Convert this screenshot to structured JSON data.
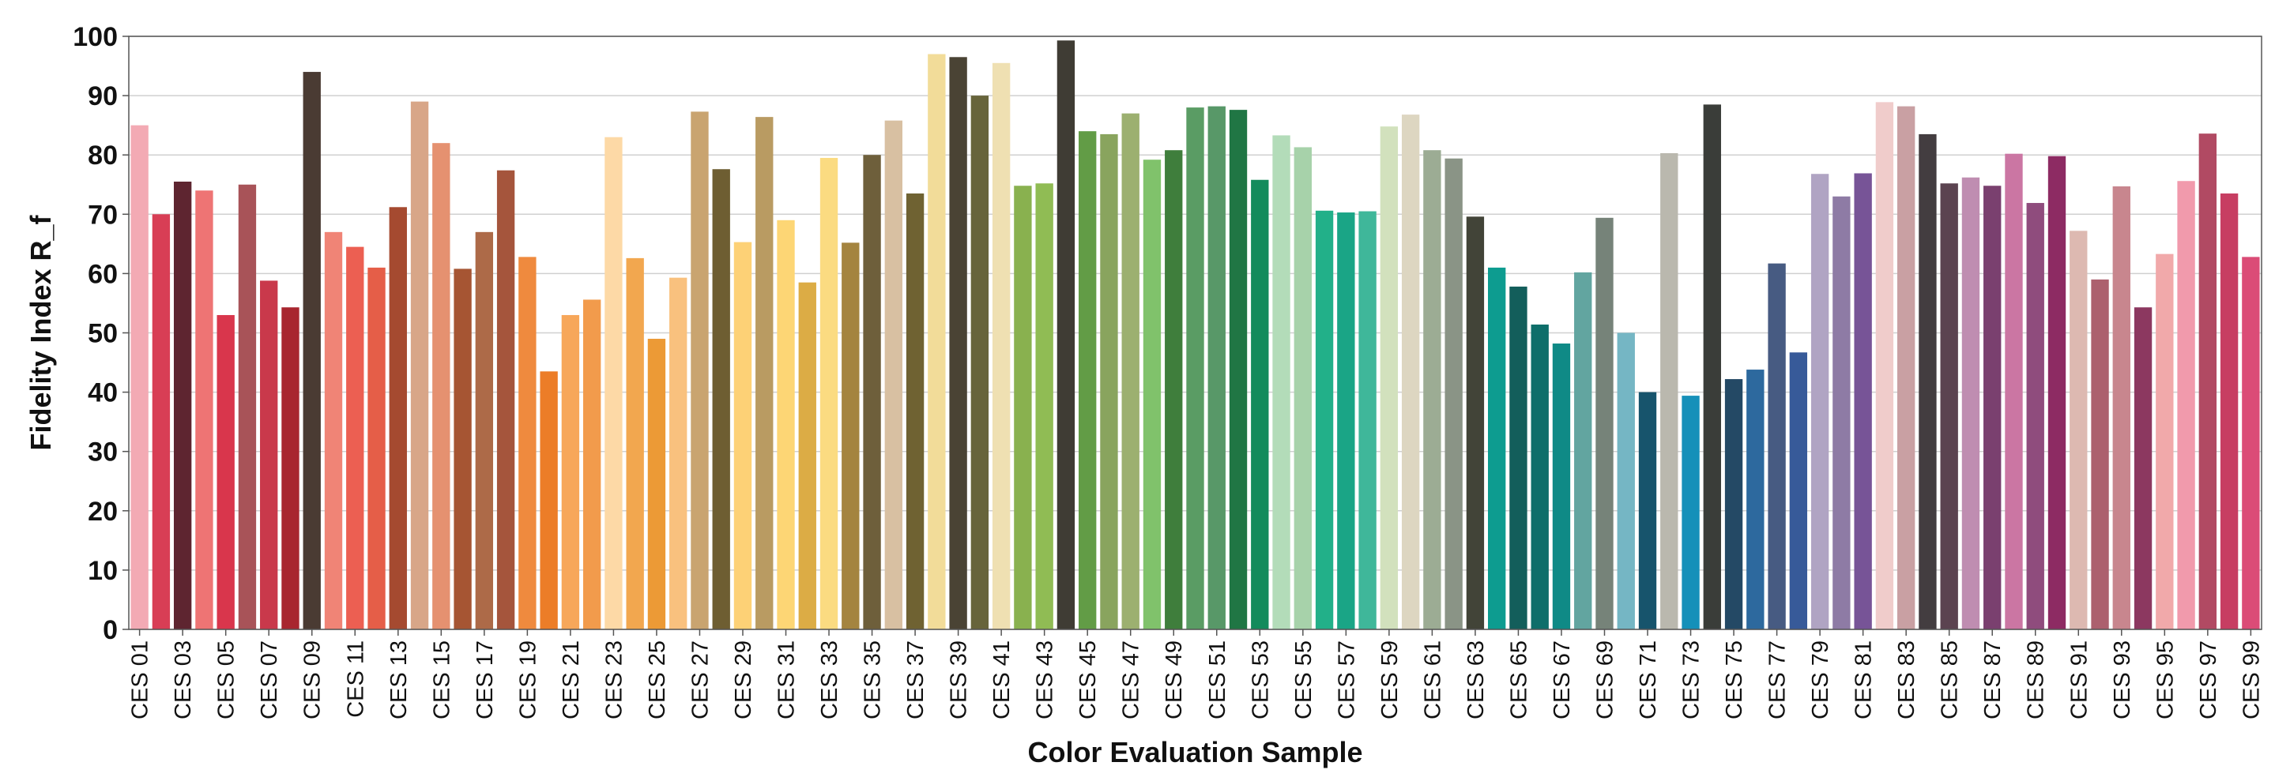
{
  "chart_data": {
    "type": "bar",
    "title": "",
    "xlabel": "Color Evaluation Sample",
    "ylabel": "Fidelity Index R_f",
    "ylim": [
      0,
      100
    ],
    "yticks": [
      0,
      10,
      20,
      30,
      40,
      50,
      60,
      70,
      80,
      90,
      100
    ],
    "grid": "horizontal",
    "categories": [
      "CES 01",
      "CES 02",
      "CES 03",
      "CES 04",
      "CES 05",
      "CES 06",
      "CES 07",
      "CES 08",
      "CES 09",
      "CES 10",
      "CES 11",
      "CES 12",
      "CES 13",
      "CES 14",
      "CES 15",
      "CES 16",
      "CES 17",
      "CES 18",
      "CES 19",
      "CES 20",
      "CES 21",
      "CES 22",
      "CES 23",
      "CES 24",
      "CES 25",
      "CES 26",
      "CES 27",
      "CES 28",
      "CES 29",
      "CES 30",
      "CES 31",
      "CES 32",
      "CES 33",
      "CES 34",
      "CES 35",
      "CES 36",
      "CES 37",
      "CES 38",
      "CES 39",
      "CES 40",
      "CES 41",
      "CES 42",
      "CES 43",
      "CES 44",
      "CES 45",
      "CES 46",
      "CES 47",
      "CES 48",
      "CES 49",
      "CES 50",
      "CES 51",
      "CES 52",
      "CES 53",
      "CES 54",
      "CES 55",
      "CES 56",
      "CES 57",
      "CES 58",
      "CES 59",
      "CES 60",
      "CES 61",
      "CES 62",
      "CES 63",
      "CES 64",
      "CES 65",
      "CES 66",
      "CES 67",
      "CES 68",
      "CES 69",
      "CES 70",
      "CES 71",
      "CES 72",
      "CES 73",
      "CES 74",
      "CES 75",
      "CES 76",
      "CES 77",
      "CES 78",
      "CES 79",
      "CES 80",
      "CES 81",
      "CES 82",
      "CES 83",
      "CES 84",
      "CES 85",
      "CES 86",
      "CES 87",
      "CES 88",
      "CES 89",
      "CES 90",
      "CES 91",
      "CES 92",
      "CES 93",
      "CES 94",
      "CES 95",
      "CES 96",
      "CES 97",
      "CES 98",
      "CES 99"
    ],
    "visible_tick_labels": [
      "CES 01",
      "CES 03",
      "CES 05",
      "CES 07",
      "CES 09",
      "CES 11",
      "CES 13",
      "CES 15",
      "CES 17",
      "CES 19",
      "CES 21",
      "CES 23",
      "CES 25",
      "CES 27",
      "CES 29",
      "CES 31",
      "CES 33",
      "CES 35",
      "CES 37",
      "CES 39",
      "CES 41",
      "CES 43",
      "CES 45",
      "CES 47",
      "CES 49",
      "CES 51",
      "CES 53",
      "CES 55",
      "CES 57",
      "CES 59",
      "CES 61",
      "CES 63",
      "CES 65",
      "CES 67",
      "CES 69",
      "CES 71",
      "CES 73",
      "CES 75",
      "CES 77",
      "CES 79",
      "CES 81",
      "CES 83",
      "CES 85",
      "CES 87",
      "CES 89",
      "CES 91",
      "CES 93",
      "CES 95",
      "CES 97",
      "CES 99"
    ],
    "values": [
      85,
      70,
      75.5,
      74,
      53,
      75,
      58.8,
      54.3,
      94,
      67,
      64.5,
      61,
      71.2,
      89,
      82,
      60.8,
      67,
      77.4,
      62.8,
      43.5,
      53,
      55.6,
      83,
      62.6,
      49,
      59.3,
      87.3,
      77.6,
      65.3,
      86.4,
      69,
      58.5,
      79.5,
      65.2,
      80,
      85.8,
      73.5,
      97,
      96.5,
      90,
      95.5,
      74.8,
      75.2,
      99.3,
      84,
      83.5,
      87,
      79.2,
      80.8,
      88,
      88.2,
      87.6,
      75.8,
      83.3,
      81.3,
      70.6,
      70.3,
      70.5,
      84.8,
      86.8,
      80.8,
      79.4,
      69.6,
      61,
      57.8,
      51.4,
      48.2,
      60.2,
      69.4,
      50,
      40,
      80.3,
      39.4,
      88.5,
      42.2,
      43.8,
      61.7,
      46.7,
      76.8,
      73,
      76.9,
      88.9,
      88.2,
      83.5,
      75.2,
      76.2,
      74.8,
      80.2,
      71.9,
      79.8,
      67.2,
      59,
      74.7,
      54.3,
      63.3,
      75.6,
      83.6,
      73.5,
      62.8
    ],
    "bar_colors": [
      "#f3aab4",
      "#d83e55",
      "#5e2530",
      "#ee7474",
      "#d9364c",
      "#a85358",
      "#c9394b",
      "#a8262f",
      "#4a3b33",
      "#f08476",
      "#ec5f52",
      "#e55e48",
      "#a54a30",
      "#d8a688",
      "#e59170",
      "#a65533",
      "#ad6a48",
      "#a5553c",
      "#ef8a3e",
      "#ec7d28",
      "#f7a75a",
      "#f29b4c",
      "#fdd9a6",
      "#f2a74f",
      "#ec9a36",
      "#f9c17e",
      "#c9a470",
      "#6e5e32",
      "#fdd176",
      "#b99b62",
      "#fdd675",
      "#dcac45",
      "#fbdb81",
      "#a4843f",
      "#6e5f3b",
      "#d8c0a2",
      "#6f6232",
      "#f2dc99",
      "#4a4334",
      "#67643b",
      "#efe0b2",
      "#89b14f",
      "#90bc54",
      "#3f3c34",
      "#629c46",
      "#89a45e",
      "#9cb070",
      "#80c26b",
      "#3f7e3c",
      "#5a9c64",
      "#589868",
      "#207644",
      "#138b5c",
      "#b3dcb9",
      "#a7d2aa",
      "#22b089",
      "#1aa586",
      "#3fb79a",
      "#d2e1bd",
      "#ddd6c1",
      "#9cac94",
      "#8a9486",
      "#424438",
      "#0d9c90",
      "#135e5b",
      "#0e6e6a",
      "#0f8a86",
      "#62a5a0",
      "#768379",
      "#75b6c4",
      "#17546c",
      "#bab8ae",
      "#1590b9",
      "#3a3d39",
      "#244965",
      "#2d699e",
      "#475b82",
      "#375a99",
      "#b0a4c3",
      "#8e7ba5",
      "#775497",
      "#f0cccb",
      "#c9a0a3",
      "#433d40",
      "#5b4350",
      "#bf8db1",
      "#7a406f",
      "#cb76a3",
      "#8f4c7d",
      "#8d2b63",
      "#ddb9b1",
      "#ac606e",
      "#c8868e",
      "#8c3860",
      "#f1a9aa",
      "#f19aac",
      "#b14a63",
      "#c73e62",
      "#db4c77"
    ]
  }
}
